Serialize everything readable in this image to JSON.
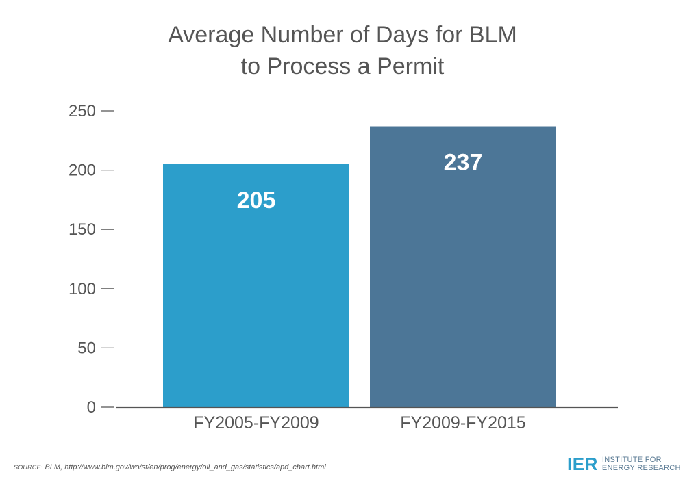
{
  "chart_data": {
    "type": "bar",
    "title_lines": [
      "Average Number of Days for BLM",
      "to Process a Permit"
    ],
    "categories": [
      "FY2005-FY2009",
      "FY2009-FY2015"
    ],
    "values": [
      205,
      237
    ],
    "data_labels": [
      "205",
      "237"
    ],
    "colors": [
      "#2c9ecb",
      "#4c7697"
    ],
    "ylim": [
      0,
      250
    ],
    "yticks": [
      0,
      50,
      100,
      150,
      200,
      250
    ],
    "xlabel": "",
    "ylabel": "",
    "grid": false,
    "legend": "none"
  },
  "source": {
    "prefix": "Source:",
    "text": " BLM, http://www.blm.gov/wo/st/en/prog/energy/oil_and_gas/statistics/apd_chart.html"
  },
  "logo": {
    "mark": "IER",
    "line1": "INSTITUTE FOR",
    "line2": "ENERGY RESEARCH"
  }
}
